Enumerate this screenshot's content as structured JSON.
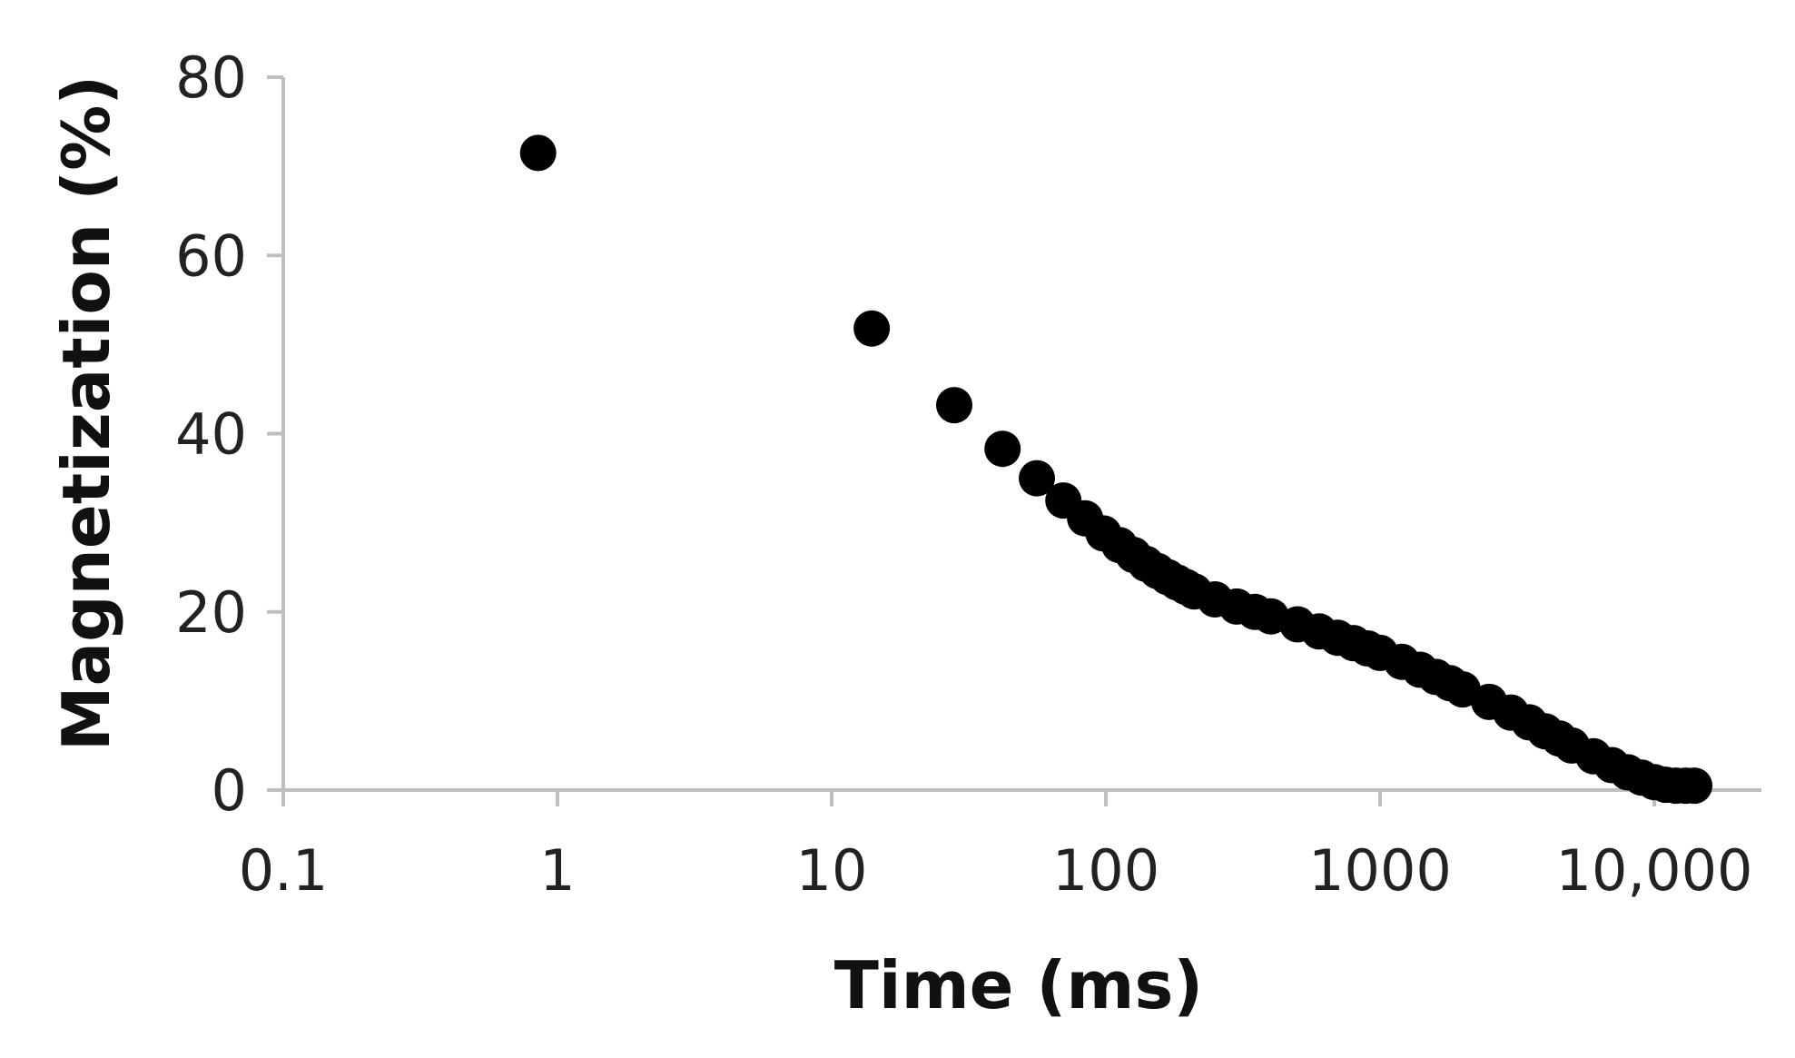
{
  "chart_data": {
    "type": "scatter",
    "title": "",
    "xlabel": "Time (ms)",
    "ylabel": "Magnetization (%)",
    "x_scale": "log",
    "xlim": [
      0.1,
      20000
    ],
    "ylim": [
      0,
      80
    ],
    "x_ticks": [
      {
        "value": 0.1,
        "label": "0.1"
      },
      {
        "value": 1,
        "label": "1"
      },
      {
        "value": 10,
        "label": "10"
      },
      {
        "value": 100,
        "label": "100"
      },
      {
        "value": 1000,
        "label": "1000"
      },
      {
        "value": 10000,
        "label": "10,000"
      }
    ],
    "y_ticks": [
      {
        "value": 0,
        "label": "0"
      },
      {
        "value": 20,
        "label": "20"
      },
      {
        "value": 40,
        "label": "40"
      },
      {
        "value": 60,
        "label": "60"
      },
      {
        "value": 80,
        "label": "80"
      }
    ],
    "grid": false,
    "marker_color": "#000000",
    "axis_color": "#bfbfbf",
    "series": [
      {
        "x": [
          0.85,
          14,
          28,
          42,
          56,
          70,
          84,
          98,
          112,
          126,
          140,
          154,
          168,
          182,
          196,
          210,
          250,
          300,
          350,
          400,
          500,
          600,
          700,
          800,
          900,
          1000,
          1200,
          1400,
          1600,
          1800,
          2000,
          2500,
          3000,
          3500,
          4000,
          4500,
          5000,
          6000,
          7000,
          8000,
          9000,
          10000,
          11000,
          12000,
          13000,
          14000
        ],
        "y": [
          71.5,
          51.8,
          43.2,
          38.3,
          35.0,
          32.5,
          30.5,
          28.8,
          27.5,
          26.4,
          25.4,
          24.6,
          23.9,
          23.3,
          22.8,
          22.3,
          21.4,
          20.6,
          20.0,
          19.5,
          18.6,
          17.8,
          17.1,
          16.5,
          15.9,
          15.4,
          14.4,
          13.5,
          12.7,
          12.0,
          11.3,
          9.9,
          8.7,
          7.6,
          6.6,
          5.8,
          5.0,
          3.8,
          2.8,
          2.0,
          1.4,
          0.9,
          0.6,
          0.5,
          0.5,
          0.5
        ]
      }
    ]
  }
}
